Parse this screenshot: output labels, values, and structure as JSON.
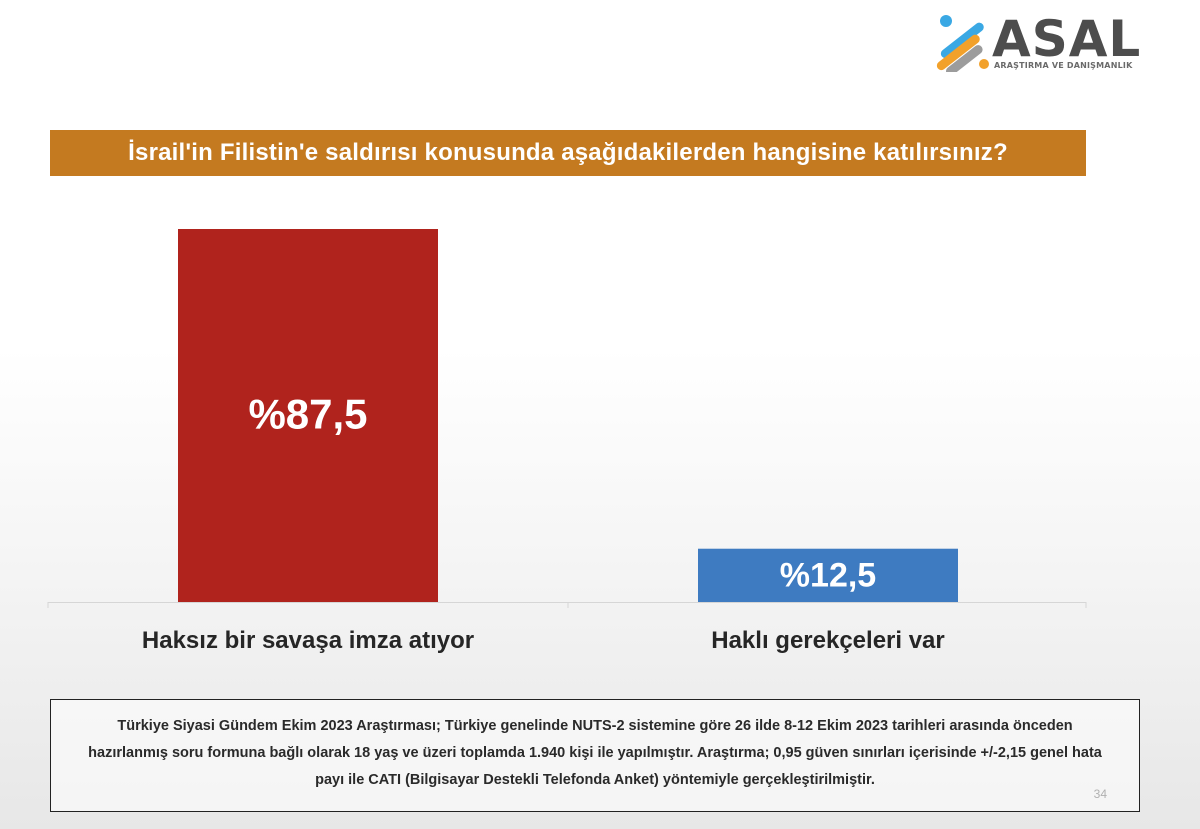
{
  "logo": {
    "brand": "ASAL",
    "subtitle": "ARAŞTIRMA VE DANIŞMANLIK",
    "colors": [
      "#3aa8e4",
      "#f2a12b",
      "#9c9c9c"
    ]
  },
  "title": "İsrail'in Filistin'e saldırısı konusunda aşağıdakilerden hangisine katılırsınız?",
  "colors": {
    "title_bar": "#c47a20",
    "bar_1": "#b0231d",
    "bar_2": "#3e7bc1"
  },
  "chart_data": {
    "type": "bar",
    "title": "İsrail'in Filistin'e saldırısı konusunda aşağıdakilerden hangisine katılırsınız?",
    "categories": [
      "Haksız bir savaşa imza atıyor",
      "Haklı gerekçeleri var"
    ],
    "values": [
      87.5,
      12.5
    ],
    "value_labels": [
      "%87,5",
      "%12,5"
    ],
    "colors": [
      "#b0231d",
      "#3e7bc1"
    ],
    "ylim": [
      0,
      100
    ],
    "grid": false,
    "legend": "none"
  },
  "footnote": {
    "text": "Türkiye Siyasi Gündem Ekim 2023 Araştırması; Türkiye genelinde NUTS-2 sistemine göre 26 ilde 8-12 Ekim 2023 tarihleri arasında önceden hazırlanmış soru formuna bağlı olarak 18 yaş ve üzeri toplamda 1.940 kişi ile yapılmıştır. Araştırma; 0,95 güven sınırları içerisinde +/-2,15 genel hata payı ile CATI (Bilgisayar Destekli Telefonda Anket) yöntemiyle gerçekleştirilmiştir.",
    "page_number": "34"
  }
}
